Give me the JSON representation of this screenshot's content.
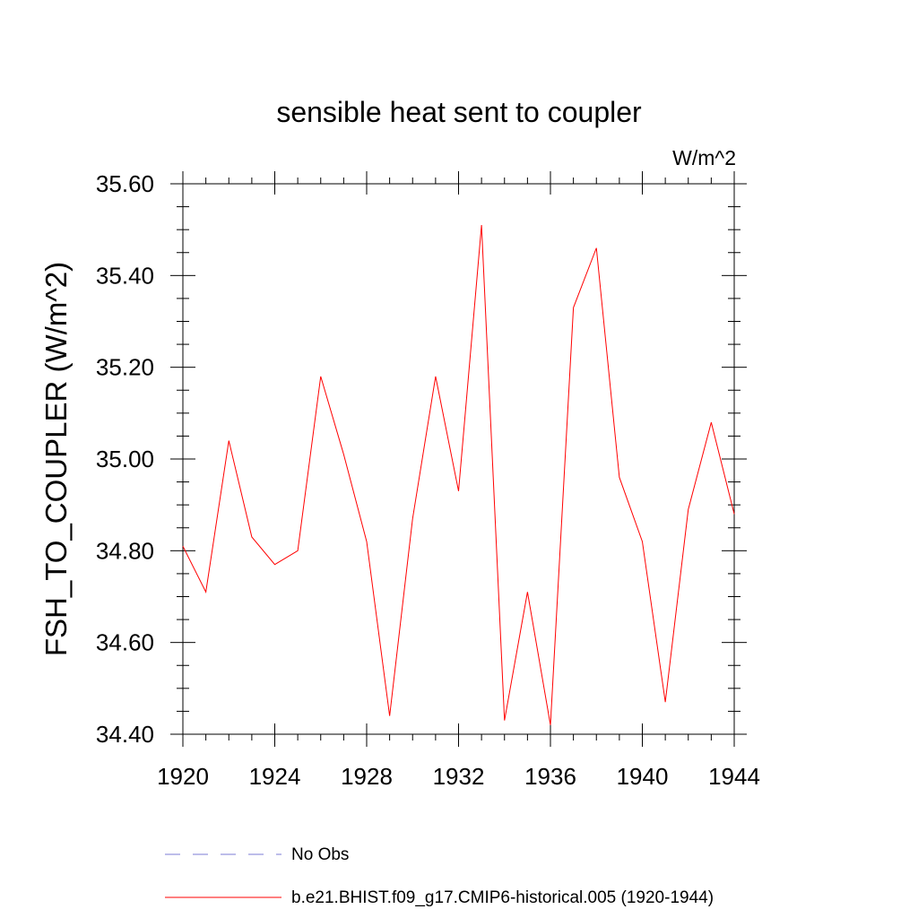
{
  "chart_data": {
    "type": "line",
    "title": "sensible heat sent to coupler",
    "units_label": "W/m^2",
    "ylabel": "FSH_TO_COUPLER  (W/m^2)",
    "xlabel": "",
    "xlim": [
      1920,
      1944
    ],
    "ylim": [
      34.4,
      35.6
    ],
    "x_ticks": [
      "1920",
      "1924",
      "1928",
      "1932",
      "1936",
      "1940",
      "1944"
    ],
    "y_ticks": [
      "34.40",
      "34.60",
      "34.80",
      "35.00",
      "35.20",
      "35.40",
      "35.60"
    ],
    "grid": false,
    "legend_position": "bottom",
    "series": [
      {
        "name": "b.e21.BHIST.f09_g17.CMIP6-historical.005 (1920-1944)",
        "color": "#ff0000",
        "style": "solid",
        "x": [
          1920,
          1921,
          1922,
          1923,
          1924,
          1925,
          1926,
          1927,
          1928,
          1929,
          1930,
          1931,
          1932,
          1933,
          1934,
          1935,
          1936,
          1937,
          1938,
          1939,
          1940,
          1941,
          1942,
          1943,
          1944
        ],
        "values": [
          34.81,
          34.71,
          35.04,
          34.83,
          34.77,
          34.8,
          35.18,
          35.01,
          34.82,
          34.44,
          34.87,
          35.18,
          34.93,
          35.51,
          34.43,
          34.71,
          34.42,
          35.33,
          35.46,
          34.96,
          34.82,
          34.47,
          34.89,
          35.08,
          34.88
        ]
      },
      {
        "name": "No Obs",
        "color": "#7b7bd6",
        "style": "dashed",
        "x": [],
        "values": []
      }
    ]
  }
}
